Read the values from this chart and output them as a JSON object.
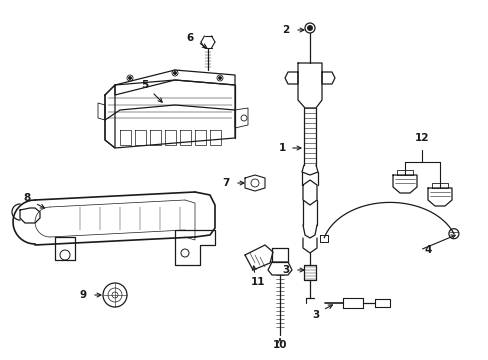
{
  "background_color": "#ffffff",
  "line_color": "#1a1a1a",
  "figsize": [
    4.89,
    3.6
  ],
  "dpi": 100,
  "lw_main": 0.9,
  "lw_thin": 0.5,
  "lw_thick": 1.2,
  "label_fontsize": 7.5
}
